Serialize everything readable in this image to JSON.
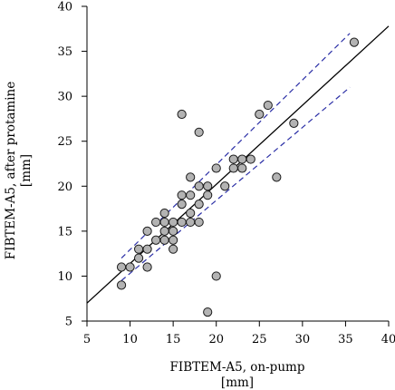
{
  "chart_data": {
    "type": "scatter",
    "xlabel_line1": "FIBTEM-A5, on-pump",
    "xlabel_line2": "[mm]",
    "ylabel_line1": "FIBTEM-A5, after protamine",
    "ylabel_line2": "[mm]",
    "xlim": [
      5,
      40
    ],
    "ylim": [
      5,
      40
    ],
    "xticks": [
      5,
      10,
      15,
      20,
      25,
      30,
      35,
      40
    ],
    "yticks": [
      5,
      10,
      15,
      20,
      25,
      30,
      35,
      40
    ],
    "grid": false,
    "colors": {
      "point_fill": "#b3b3b3",
      "point_stroke": "#1a1a1a",
      "regression": "#000000",
      "confidence_band": "#2b2fa6"
    },
    "points": [
      {
        "x": 9,
        "y": 9
      },
      {
        "x": 9,
        "y": 11
      },
      {
        "x": 10,
        "y": 11
      },
      {
        "x": 11,
        "y": 12
      },
      {
        "x": 11,
        "y": 13
      },
      {
        "x": 12,
        "y": 11
      },
      {
        "x": 12,
        "y": 13
      },
      {
        "x": 12,
        "y": 15
      },
      {
        "x": 13,
        "y": 14
      },
      {
        "x": 13,
        "y": 16
      },
      {
        "x": 14,
        "y": 14
      },
      {
        "x": 14,
        "y": 15
      },
      {
        "x": 14,
        "y": 16
      },
      {
        "x": 14,
        "y": 17
      },
      {
        "x": 15,
        "y": 13
      },
      {
        "x": 15,
        "y": 14
      },
      {
        "x": 15,
        "y": 15
      },
      {
        "x": 15,
        "y": 16
      },
      {
        "x": 16,
        "y": 16
      },
      {
        "x": 16,
        "y": 18
      },
      {
        "x": 16,
        "y": 19
      },
      {
        "x": 16,
        "y": 28
      },
      {
        "x": 17,
        "y": 16
      },
      {
        "x": 17,
        "y": 17
      },
      {
        "x": 17,
        "y": 19
      },
      {
        "x": 17,
        "y": 21
      },
      {
        "x": 18,
        "y": 16
      },
      {
        "x": 18,
        "y": 18
      },
      {
        "x": 18,
        "y": 20
      },
      {
        "x": 18,
        "y": 26
      },
      {
        "x": 19,
        "y": 6
      },
      {
        "x": 19,
        "y": 19
      },
      {
        "x": 19,
        "y": 20
      },
      {
        "x": 20,
        "y": 10
      },
      {
        "x": 20,
        "y": 22
      },
      {
        "x": 21,
        "y": 20
      },
      {
        "x": 22,
        "y": 22
      },
      {
        "x": 22,
        "y": 23
      },
      {
        "x": 23,
        "y": 22
      },
      {
        "x": 23,
        "y": 23
      },
      {
        "x": 24,
        "y": 23
      },
      {
        "x": 25,
        "y": 28
      },
      {
        "x": 26,
        "y": 29
      },
      {
        "x": 27,
        "y": 21
      },
      {
        "x": 29,
        "y": 27
      },
      {
        "x": 36,
        "y": 36
      }
    ],
    "regression_line": {
      "x": [
        5,
        40
      ],
      "y": [
        7,
        37.8
      ]
    },
    "confidence_band": {
      "upper": {
        "x": [
          9,
          35.5
        ],
        "y": [
          12,
          37
        ]
      },
      "lower": {
        "x": [
          9,
          35.5
        ],
        "y": [
          9.5,
          31
        ]
      }
    }
  }
}
